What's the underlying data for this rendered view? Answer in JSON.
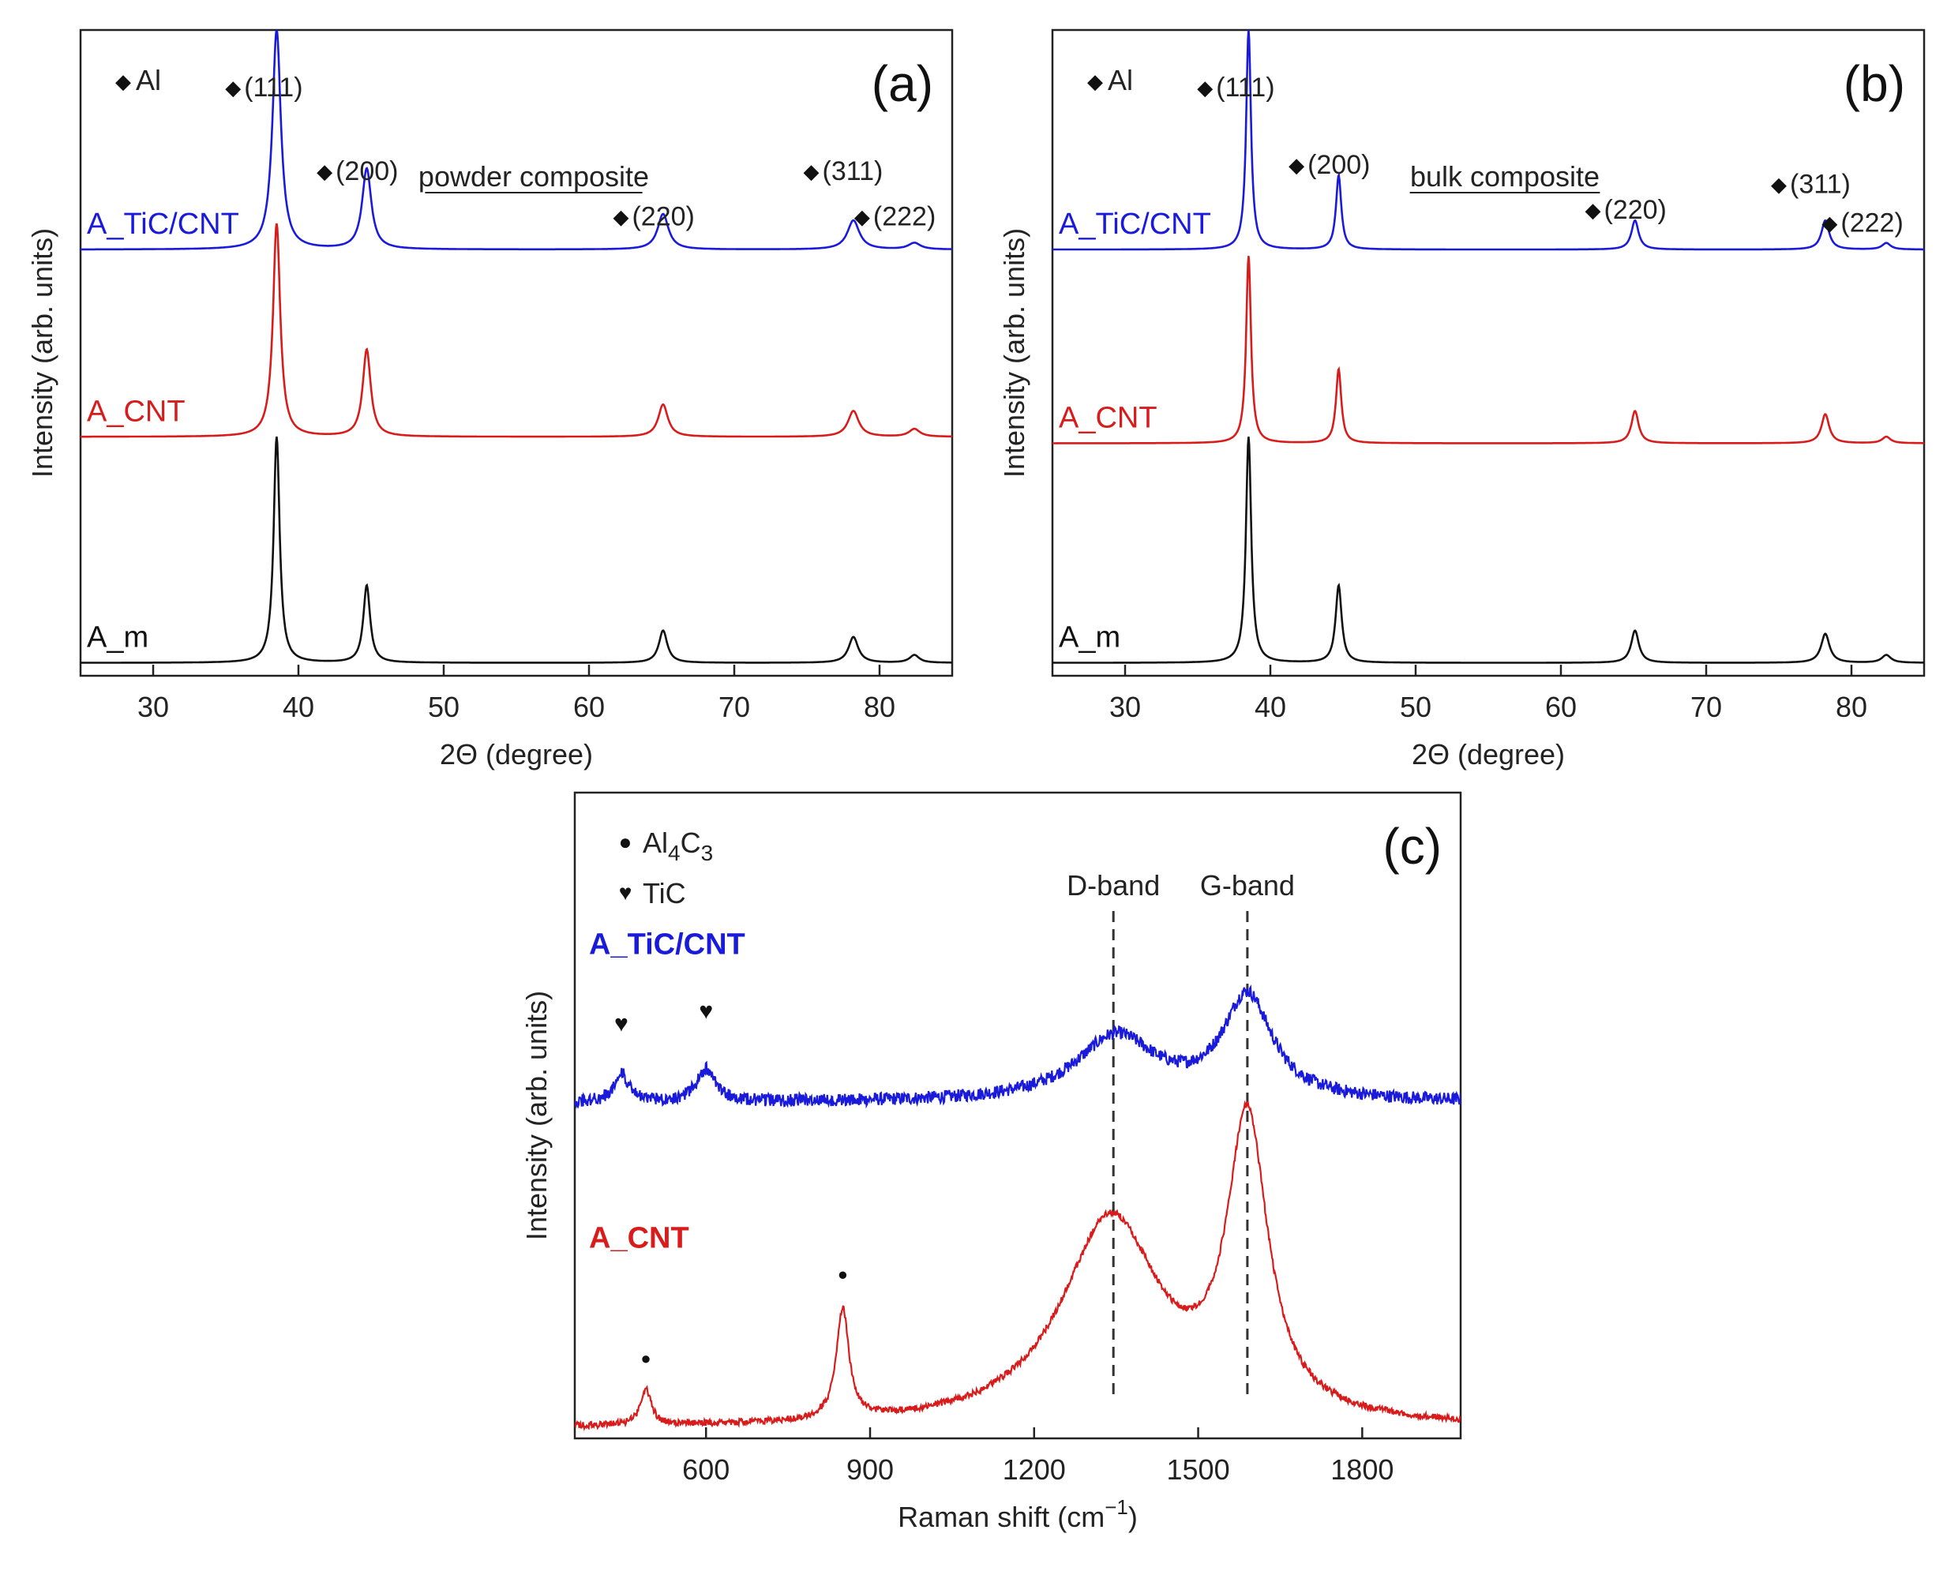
{
  "colors": {
    "blue": "#1a1adb",
    "red": "#d81c1c",
    "black": "#111111",
    "axis": "#222222"
  },
  "chart_data": [
    {
      "type": "line",
      "panel_label": "(a)",
      "title": "powder composite",
      "xlabel": "2Θ (degree)",
      "ylabel": "Intensity (arb. units)",
      "xlim": [
        25,
        85
      ],
      "ylim": [
        0,
        10
      ],
      "xticks": [
        30,
        40,
        50,
        60,
        70,
        80
      ],
      "legend": {
        "marker": "◆",
        "label": "Al"
      },
      "series": [
        {
          "name": "A_TiC/CNT",
          "color": "#1a1adb",
          "baseline": 6.6,
          "noise": 0.0,
          "peaks": [
            [
              38.5,
              3.4,
              0.35
            ],
            [
              44.7,
              1.25,
              0.38
            ],
            [
              65.1,
              0.55,
              0.45
            ],
            [
              78.2,
              0.45,
              0.5
            ],
            [
              82.4,
              0.1,
              0.5
            ]
          ]
        },
        {
          "name": "A_CNT",
          "color": "#d81c1c",
          "baseline": 3.7,
          "noise": 0.0,
          "peaks": [
            [
              38.5,
              3.3,
              0.3
            ],
            [
              44.7,
              1.35,
              0.33
            ],
            [
              65.1,
              0.5,
              0.4
            ],
            [
              78.2,
              0.4,
              0.45
            ],
            [
              82.4,
              0.12,
              0.45
            ]
          ]
        },
        {
          "name": "A_m",
          "color": "#111111",
          "baseline": 0.2,
          "noise": 0.0,
          "peaks": [
            [
              38.5,
              3.5,
              0.25
            ],
            [
              44.7,
              1.2,
              0.28
            ],
            [
              65.1,
              0.5,
              0.35
            ],
            [
              78.2,
              0.4,
              0.4
            ],
            [
              82.4,
              0.12,
              0.4
            ]
          ]
        }
      ],
      "annotations": [
        {
          "text": "(111)",
          "x": 35.5,
          "y": 9.0
        },
        {
          "text": "(200)",
          "x": 41.8,
          "y": 7.7
        },
        {
          "text": "(220)",
          "x": 62.2,
          "y": 7.0
        },
        {
          "text": "(311)",
          "x": 75.3,
          "y": 7.7
        },
        {
          "text": "(222)",
          "x": 78.8,
          "y": 7.0
        }
      ]
    },
    {
      "type": "line",
      "panel_label": "(b)",
      "title": "bulk composite",
      "xlabel": "2Θ (degree)",
      "ylabel": "Intensity (arb. units)",
      "xlim": [
        25,
        85
      ],
      "ylim": [
        0,
        10
      ],
      "xticks": [
        30,
        40,
        50,
        60,
        70,
        80
      ],
      "legend": {
        "marker": "◆",
        "label": "Al"
      },
      "series": [
        {
          "name": "A_TiC/CNT",
          "color": "#1a1adb",
          "baseline": 6.6,
          "noise": 0.0,
          "peaks": [
            [
              38.5,
              3.4,
              0.2
            ],
            [
              44.7,
              1.15,
              0.22
            ],
            [
              65.1,
              0.45,
              0.3
            ],
            [
              78.2,
              0.45,
              0.32
            ],
            [
              82.4,
              0.1,
              0.35
            ]
          ]
        },
        {
          "name": "A_CNT",
          "color": "#d81c1c",
          "baseline": 3.6,
          "noise": 0.0,
          "peaks": [
            [
              38.5,
              2.9,
              0.2
            ],
            [
              44.7,
              1.15,
              0.22
            ],
            [
              65.1,
              0.5,
              0.3
            ],
            [
              78.2,
              0.45,
              0.32
            ],
            [
              82.4,
              0.1,
              0.35
            ]
          ]
        },
        {
          "name": "A_m",
          "color": "#111111",
          "baseline": 0.2,
          "noise": 0.0,
          "peaks": [
            [
              38.5,
              3.5,
              0.22
            ],
            [
              44.7,
              1.2,
              0.25
            ],
            [
              65.1,
              0.5,
              0.32
            ],
            [
              78.2,
              0.45,
              0.35
            ],
            [
              82.4,
              0.12,
              0.38
            ]
          ]
        }
      ],
      "annotations": [
        {
          "text": "(111)",
          "x": 35.5,
          "y": 9.0
        },
        {
          "text": "(200)",
          "x": 41.8,
          "y": 7.8
        },
        {
          "text": "(220)",
          "x": 62.2,
          "y": 7.1
        },
        {
          "text": "(311)",
          "x": 75.0,
          "y": 7.5
        },
        {
          "text": "(222)",
          "x": 78.5,
          "y": 6.9
        }
      ]
    },
    {
      "type": "line",
      "panel_label": "(c)",
      "title": "",
      "xlabel": "Raman shift (cm",
      "xlabel_sup": "−1",
      "xlabel_end": ")",
      "ylabel": "Intensity (arb. units)",
      "xlim": [
        360,
        1980
      ],
      "ylim": [
        0,
        10
      ],
      "xticks": [
        600,
        900,
        1200,
        1500,
        1800
      ],
      "legend_items": [
        {
          "marker": "●",
          "label": "Al",
          "sub1": "4",
          "mid": "C",
          "sub2": "3"
        },
        {
          "marker": "♥",
          "label": "TiC"
        }
      ],
      "series": [
        {
          "name": "A_TiC/CNT",
          "color": "#1a1adb",
          "baseline": 5.2,
          "noise": 0.1,
          "peaks": [
            [
              445,
              0.45,
              15
            ],
            [
              600,
              0.5,
              20
            ],
            [
              1350,
              1.0,
              90
            ],
            [
              1590,
              1.6,
              55
            ]
          ]
        },
        {
          "name": "A_CNT",
          "color": "#d81c1c",
          "baseline": 0.15,
          "noise": 0.05,
          "peaks": [
            [
              490,
              0.55,
              12
            ],
            [
              850,
              1.7,
              14
            ],
            [
              1340,
              3.2,
              110
            ],
            [
              1590,
              4.5,
              45
            ]
          ]
        }
      ],
      "vlines": [
        {
          "label": "D-band",
          "x": 1345
        },
        {
          "label": "G-band",
          "x": 1590
        }
      ],
      "markers": [
        {
          "symbol": "♥",
          "x": 445,
          "y": 6.3
        },
        {
          "symbol": "♥",
          "x": 600,
          "y": 6.5
        },
        {
          "symbol": "●",
          "x": 490,
          "y": 1.15
        },
        {
          "symbol": "●",
          "x": 850,
          "y": 2.45
        }
      ]
    }
  ]
}
